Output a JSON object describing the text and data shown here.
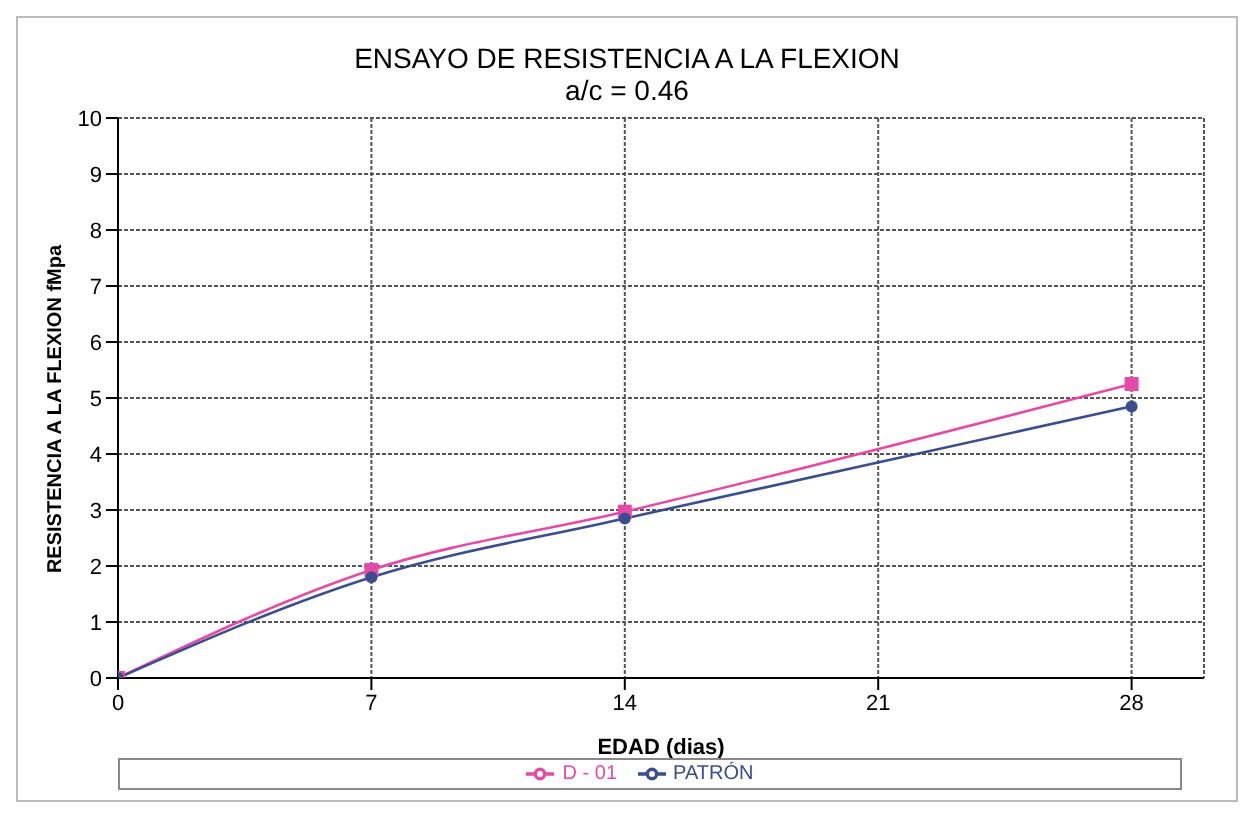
{
  "chart_data": {
    "type": "line",
    "title": "ENSAYO DE RESISTENCIA A LA FLEXION",
    "subtitle": "a/c = 0.46",
    "xlabel": "EDAD (dias)",
    "ylabel": "RESISTENCIA A LA FLEXION fMpa",
    "x": [
      0,
      7,
      14,
      28
    ],
    "series": [
      {
        "name": "PATRÓN",
        "color": "#3a4d8f",
        "values": [
          0,
          1.8,
          2.85,
          4.85
        ],
        "marker": "circle"
      },
      {
        "name": "D - 01",
        "color": "#e64aa8",
        "values": [
          0,
          1.93,
          2.97,
          5.25
        ],
        "marker": "square"
      }
    ],
    "xlim": [
      0,
      30
    ],
    "xticks": [
      0,
      7,
      14,
      21,
      28
    ],
    "ylim": [
      0,
      10
    ],
    "yticks": [
      0,
      1,
      2,
      3,
      4,
      5,
      6,
      7,
      8,
      9,
      10
    ],
    "grid": true,
    "legend": "bottom"
  }
}
